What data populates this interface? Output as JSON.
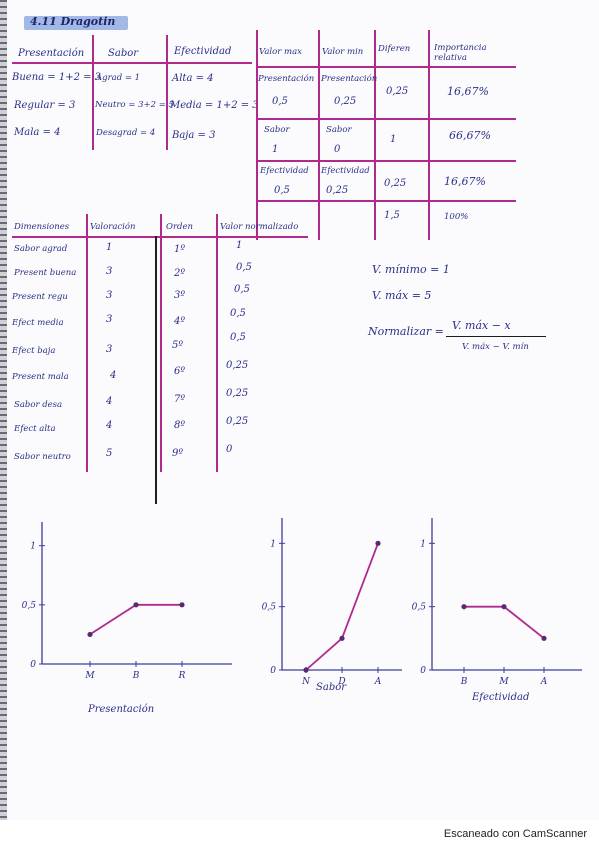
{
  "title": "4.11 Dragotin",
  "table1": {
    "headers": [
      "Presentación",
      "Sabor",
      "Efectividad"
    ],
    "col1": [
      "Buena = 1+2 = 3",
      "Regular = 3",
      "Mala = 4"
    ],
    "col2": [
      "Agrad = 1",
      "Neutro = 3+2 = 5",
      "Desagrad = 4"
    ],
    "col3": [
      "Alta = 4",
      "Media = 1+2 = 3",
      "Baja = 3"
    ]
  },
  "table2": {
    "headers": [
      "Valor max",
      "Valor min",
      "Diferen",
      "Importancia relativa"
    ],
    "rows": [
      {
        "max_label": "Presentación",
        "max_value": "0,5",
        "min_label": "Presentación",
        "min_value": "0,25",
        "diff": "0,25",
        "rel": "16,67%"
      },
      {
        "max_label": "Sabor",
        "max_value": "1",
        "min_label": "Sabor",
        "min_value": "0",
        "diff": "1",
        "rel": "66,67%"
      },
      {
        "max_label": "Efectividad",
        "max_value": "0,5",
        "min_label": "Efectividad",
        "min_value": "0,25",
        "diff": "0,25",
        "rel": "16,67%"
      }
    ],
    "total_diff": "1,5",
    "total_rel": "100%"
  },
  "table3": {
    "headers": [
      "Dimensiones",
      "Valoración",
      "Orden",
      "Valor normalizado"
    ],
    "rows": [
      {
        "dim": "Sabor agrad",
        "val": "1",
        "ord": "1º",
        "norm": "1"
      },
      {
        "dim": "Present buena",
        "val": "3",
        "ord": "2º",
        "norm": "0,5"
      },
      {
        "dim": "Present regu",
        "val": "3",
        "ord": "3º",
        "norm": "0,5"
      },
      {
        "dim": "Efect media",
        "val": "3",
        "ord": "4º",
        "norm": "0,5"
      },
      {
        "dim": "Efect baja",
        "val": "3",
        "ord": "5º",
        "norm": "0,5"
      },
      {
        "dim": "Present mala",
        "val": "4",
        "ord": "6º",
        "norm": "0,25"
      },
      {
        "dim": "Sabor desa",
        "val": "4",
        "ord": "7º",
        "norm": "0,25"
      },
      {
        "dim": "Efect alta",
        "val": "4",
        "ord": "8º",
        "norm": "0,25"
      },
      {
        "dim": "Sabor neutro",
        "val": "5",
        "ord": "9º",
        "norm": "0"
      }
    ]
  },
  "formulas": {
    "vmin": "V. mínimo = 1",
    "vmax": "V. máx = 5",
    "norm_label": "Normalizar =",
    "numerator": "V. máx − x",
    "denominator": "V. máx − V. mín"
  },
  "chart_data": [
    {
      "type": "line",
      "title": "",
      "xlabel": "Presentación",
      "ylabel": "",
      "categories": [
        "M",
        "B",
        "R"
      ],
      "series": [
        {
          "values": [
            0.25,
            0.5,
            0.5
          ]
        }
      ],
      "yticks": [
        "0",
        "0,5",
        "1"
      ],
      "ylim": [
        0,
        1.2
      ],
      "grid": false,
      "color": "#b02a8e"
    },
    {
      "type": "line",
      "title": "",
      "xlabel": "Sabor",
      "ylabel": "",
      "categories": [
        "N",
        "D",
        "A"
      ],
      "series": [
        {
          "values": [
            0,
            0.25,
            1
          ]
        }
      ],
      "yticks": [
        "0",
        "0,5",
        "1"
      ],
      "ylim": [
        0,
        1.2
      ],
      "grid": false,
      "color": "#b02a8e"
    },
    {
      "type": "line",
      "title": "",
      "xlabel": "Efectividad",
      "ylabel": "",
      "categories": [
        "B",
        "M",
        "A"
      ],
      "series": [
        {
          "values": [
            0.5,
            0.5,
            0.25
          ]
        }
      ],
      "yticks": [
        "0",
        "0,5",
        "1"
      ],
      "ylim": [
        0,
        1.2
      ],
      "grid": false,
      "color": "#b02a8e"
    }
  ],
  "footer": "Escaneado con CamScanner"
}
